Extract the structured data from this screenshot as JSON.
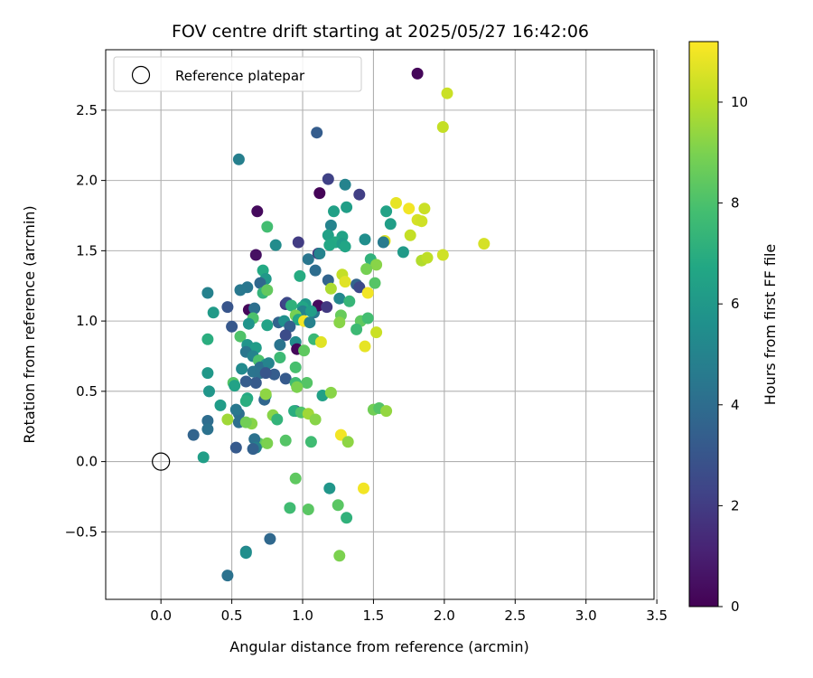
{
  "chart_data": {
    "type": "scatter",
    "title": "FOV centre drift starting at 2025/05/27 16:42:06",
    "xlabel": "Angular distance from reference (arcmin)",
    "ylabel": "Rotation from reference (arcmin)",
    "xlim": [
      -0.39,
      3.48
    ],
    "ylim": [
      -0.98,
      2.93
    ],
    "xticks": [
      0.0,
      0.5,
      1.0,
      1.5,
      2.0,
      2.5,
      3.0,
      3.5
    ],
    "xtick_labels": [
      "0.0",
      "0.5",
      "1.0",
      "1.5",
      "2.0",
      "2.5",
      "3.0",
      "3.5"
    ],
    "yticks": [
      -0.5,
      0.0,
      0.5,
      1.0,
      1.5,
      2.0,
      2.5
    ],
    "ytick_labels": [
      "−0.5",
      "0.0",
      "0.5",
      "1.0",
      "1.5",
      "2.0",
      "2.5"
    ],
    "grid": true,
    "legend": {
      "entries": [
        "Reference platepar"
      ],
      "placement": "upper-left"
    },
    "reference_point": {
      "x": 0.0,
      "y": 0.0
    },
    "colorbar": {
      "label": "Hours from first FF file",
      "colormap": "viridis",
      "range": [
        0,
        11.2
      ],
      "ticks": [
        0,
        2,
        4,
        6,
        8,
        10
      ],
      "tick_labels": [
        "0",
        "2",
        "4",
        "6",
        "8",
        "10"
      ]
    },
    "points": [
      [
        1.81,
        2.76,
        0.2
      ],
      [
        2.02,
        2.62,
        10.3
      ],
      [
        1.99,
        2.38,
        10.2
      ],
      [
        1.1,
        2.34,
        3.3
      ],
      [
        0.55,
        2.15,
        4.8
      ],
      [
        1.18,
        2.01,
        2.2
      ],
      [
        1.3,
        1.97,
        5.0
      ],
      [
        1.4,
        1.9,
        2.1
      ],
      [
        1.12,
        1.91,
        0.1
      ],
      [
        1.66,
        1.84,
        10.8
      ],
      [
        1.75,
        1.8,
        11.0
      ],
      [
        1.86,
        1.8,
        10.3
      ],
      [
        1.31,
        1.81,
        6.3
      ],
      [
        1.22,
        1.78,
        6.4
      ],
      [
        1.59,
        1.78,
        6.5
      ],
      [
        0.68,
        1.78,
        0.3
      ],
      [
        1.62,
        1.69,
        6.3
      ],
      [
        1.2,
        1.68,
        5.0
      ],
      [
        1.81,
        1.72,
        10.5
      ],
      [
        0.75,
        1.67,
        7.8
      ],
      [
        1.84,
        1.71,
        10.4
      ],
      [
        1.76,
        1.61,
        10.2
      ],
      [
        1.18,
        1.61,
        6.4
      ],
      [
        1.28,
        1.6,
        6.5
      ],
      [
        1.23,
        1.56,
        6.8
      ],
      [
        1.28,
        1.55,
        6.2
      ],
      [
        1.44,
        1.58,
        5.5
      ],
      [
        0.97,
        1.56,
        2.0
      ],
      [
        0.81,
        1.54,
        5.4
      ],
      [
        1.58,
        1.57,
        10.6
      ],
      [
        2.28,
        1.55,
        10.5
      ],
      [
        1.57,
        1.56,
        4.6
      ],
      [
        1.19,
        1.54,
        6.7
      ],
      [
        1.3,
        1.53,
        6.6
      ],
      [
        1.71,
        1.49,
        6.1
      ],
      [
        0.67,
        1.47,
        0.5
      ],
      [
        1.11,
        1.48,
        1.6
      ],
      [
        1.12,
        1.48,
        5.0
      ],
      [
        1.99,
        1.47,
        10.4
      ],
      [
        1.84,
        1.43,
        9.9
      ],
      [
        1.88,
        1.45,
        10.1
      ],
      [
        1.04,
        1.44,
        4.4
      ],
      [
        1.48,
        1.44,
        7.2
      ],
      [
        1.52,
        1.4,
        9.2
      ],
      [
        1.45,
        1.37,
        8.9
      ],
      [
        1.09,
        1.36,
        4.0
      ],
      [
        0.72,
        1.36,
        6.8
      ],
      [
        0.98,
        1.32,
        6.9
      ],
      [
        1.28,
        1.33,
        10.2
      ],
      [
        0.74,
        1.3,
        6.0
      ],
      [
        1.18,
        1.29,
        3.6
      ],
      [
        1.3,
        1.28,
        10.7
      ],
      [
        1.38,
        1.26,
        3.6
      ],
      [
        1.4,
        1.24,
        2.5
      ],
      [
        1.51,
        1.27,
        8.2
      ],
      [
        0.7,
        1.27,
        3.8
      ],
      [
        1.2,
        1.23,
        9.8
      ],
      [
        1.46,
        1.2,
        11.0
      ],
      [
        0.61,
        1.24,
        4.4
      ],
      [
        0.33,
        1.2,
        4.9
      ],
      [
        0.56,
        1.22,
        4.5
      ],
      [
        0.72,
        1.2,
        7.3
      ],
      [
        1.26,
        1.16,
        5.2
      ],
      [
        0.75,
        1.22,
        8.5
      ],
      [
        1.33,
        1.14,
        7.4
      ],
      [
        1.02,
        1.12,
        6.0
      ],
      [
        0.88,
        1.12,
        1.9
      ],
      [
        0.62,
        1.08,
        0.2
      ],
      [
        0.66,
        1.09,
        4.1
      ],
      [
        0.37,
        1.06,
        6.1
      ],
      [
        0.47,
        1.1,
        3.0
      ],
      [
        0.89,
        1.13,
        2.5
      ],
      [
        0.92,
        1.11,
        7.2
      ],
      [
        1.0,
        1.1,
        6.6
      ],
      [
        1.08,
        1.06,
        4.5
      ],
      [
        1.11,
        1.11,
        0.3
      ],
      [
        1.17,
        1.1,
        1.9
      ],
      [
        1.0,
        1.07,
        5.0
      ],
      [
        1.06,
        1.07,
        6.3
      ],
      [
        1.27,
        1.04,
        8.6
      ],
      [
        0.95,
        1.04,
        8.9
      ],
      [
        1.41,
        1.0,
        8.4
      ],
      [
        1.46,
        1.02,
        7.8
      ],
      [
        0.97,
        1.01,
        6.8
      ],
      [
        1.01,
        1.0,
        11.0
      ],
      [
        1.26,
        0.99,
        9.2
      ],
      [
        0.65,
        1.02,
        8.0
      ],
      [
        0.83,
        0.99,
        3.6
      ],
      [
        0.62,
        0.98,
        5.8
      ],
      [
        0.75,
        0.97,
        6.5
      ],
      [
        0.87,
        1.0,
        5.6
      ],
      [
        0.91,
        0.96,
        3.4
      ],
      [
        0.5,
        0.96,
        3.1
      ],
      [
        1.05,
        0.99,
        4.9
      ],
      [
        0.88,
        0.9,
        2.6
      ],
      [
        1.38,
        0.94,
        7.6
      ],
      [
        1.52,
        0.92,
        10.3
      ],
      [
        0.56,
        0.89,
        8.1
      ],
      [
        0.33,
        0.87,
        7.0
      ],
      [
        1.08,
        0.87,
        7.5
      ],
      [
        1.13,
        0.85,
        10.7
      ],
      [
        0.95,
        0.85,
        5.4
      ],
      [
        0.61,
        0.83,
        5.8
      ],
      [
        0.67,
        0.81,
        6.2
      ],
      [
        0.84,
        0.83,
        4.3
      ],
      [
        0.96,
        0.8,
        0.2
      ],
      [
        1.44,
        0.82,
        10.8
      ],
      [
        1.01,
        0.79,
        8.4
      ],
      [
        0.6,
        0.78,
        4.4
      ],
      [
        0.65,
        0.75,
        5.0
      ],
      [
        0.84,
        0.74,
        7.6
      ],
      [
        0.69,
        0.72,
        8.0
      ],
      [
        0.74,
        0.69,
        6.0
      ],
      [
        0.7,
        0.67,
        4.1
      ],
      [
        0.76,
        0.7,
        5.0
      ],
      [
        0.57,
        0.66,
        5.3
      ],
      [
        0.95,
        0.67,
        7.9
      ],
      [
        0.65,
        0.64,
        4.3
      ],
      [
        0.7,
        0.63,
        4.2
      ],
      [
        0.33,
        0.63,
        6.0
      ],
      [
        0.8,
        0.62,
        3.3
      ],
      [
        0.74,
        0.63,
        3.0
      ],
      [
        0.88,
        0.59,
        3.2
      ],
      [
        1.03,
        0.56,
        8.2
      ],
      [
        0.67,
        0.56,
        3.2
      ],
      [
        0.51,
        0.56,
        8.2
      ],
      [
        0.6,
        0.57,
        3.3
      ],
      [
        0.95,
        0.56,
        7.7
      ],
      [
        0.52,
        0.54,
        6.5
      ],
      [
        0.96,
        0.53,
        9.0
      ],
      [
        0.34,
        0.5,
        5.9
      ],
      [
        1.14,
        0.47,
        6.4
      ],
      [
        1.2,
        0.49,
        9.2
      ],
      [
        0.61,
        0.45,
        6.8
      ],
      [
        0.6,
        0.43,
        7.0
      ],
      [
        0.74,
        0.47,
        6.5
      ],
      [
        0.73,
        0.44,
        3.7
      ],
      [
        0.74,
        0.48,
        9.3
      ],
      [
        0.42,
        0.4,
        6.2
      ],
      [
        1.5,
        0.37,
        8.8
      ],
      [
        1.54,
        0.38,
        8.2
      ],
      [
        1.59,
        0.36,
        9.4
      ],
      [
        0.95,
        0.36,
        3.1
      ],
      [
        0.94,
        0.36,
        7.0
      ],
      [
        0.99,
        0.35,
        8.1
      ],
      [
        1.04,
        0.34,
        9.6
      ],
      [
        0.55,
        0.34,
        4.1
      ],
      [
        0.79,
        0.33,
        9.2
      ],
      [
        0.53,
        0.37,
        4.5
      ],
      [
        0.33,
        0.29,
        4.0
      ],
      [
        0.47,
        0.3,
        9.6
      ],
      [
        0.55,
        0.28,
        4.1
      ],
      [
        0.64,
        0.27,
        9.2
      ],
      [
        0.6,
        0.28,
        8.8
      ],
      [
        0.69,
        0.13,
        8.4
      ],
      [
        0.75,
        0.13,
        9.0
      ],
      [
        0.88,
        0.15,
        8.2
      ],
      [
        1.09,
        0.3,
        9.2
      ],
      [
        1.27,
        0.19,
        11.0
      ],
      [
        1.32,
        0.14,
        9.3
      ],
      [
        0.82,
        0.3,
        7.3
      ],
      [
        0.33,
        0.23,
        4.2
      ],
      [
        0.23,
        0.19,
        3.6
      ],
      [
        0.66,
        0.16,
        4.2
      ],
      [
        0.67,
        0.1,
        4.8
      ],
      [
        0.53,
        0.1,
        3.2
      ],
      [
        0.65,
        0.09,
        3.5
      ],
      [
        1.06,
        0.14,
        7.7
      ],
      [
        0.3,
        0.03,
        6.3
      ],
      [
        1.43,
        -0.19,
        11.0
      ],
      [
        1.19,
        -0.19,
        5.9
      ],
      [
        0.95,
        -0.12,
        8.4
      ],
      [
        0.91,
        -0.33,
        7.7
      ],
      [
        1.04,
        -0.34,
        8.3
      ],
      [
        1.25,
        -0.31,
        8.3
      ],
      [
        1.31,
        -0.4,
        7.2
      ],
      [
        0.77,
        -0.55,
        3.8
      ],
      [
        0.6,
        -0.64,
        5.0
      ],
      [
        0.6,
        -0.65,
        5.5
      ],
      [
        1.26,
        -0.67,
        9.0
      ],
      [
        0.47,
        -0.81,
        4.2
      ]
    ]
  }
}
